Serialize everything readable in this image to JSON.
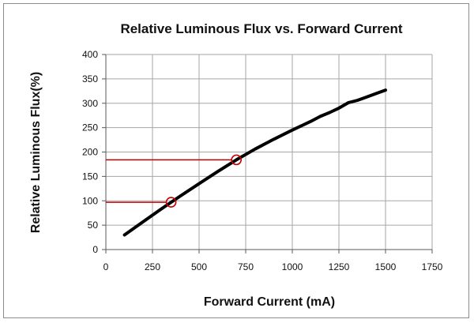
{
  "chart_data": {
    "type": "line",
    "title": "Relative Luminous Flux vs. Forward Current",
    "xlabel": "Forward Current (mA)",
    "ylabel": "Relative Luminous Flux(%)",
    "xlim": [
      0,
      1750
    ],
    "ylim": [
      0,
      400
    ],
    "x_ticks": [
      0,
      250,
      500,
      750,
      1000,
      1250,
      1500,
      1750
    ],
    "y_ticks": [
      0,
      50,
      100,
      150,
      200,
      250,
      300,
      350,
      400
    ],
    "grid": true,
    "series": [
      {
        "x": [
          100,
          200,
          300,
          350,
          400,
          500,
          600,
          700,
          800,
          900,
          1000,
          1100,
          1150,
          1200,
          1250,
          1300,
          1350,
          1400,
          1450,
          1500
        ],
        "y": [
          30,
          57,
          84,
          97,
          110,
          135,
          160,
          184,
          206,
          226,
          245,
          263,
          273,
          281,
          290,
          301,
          306,
          313,
          320,
          327
        ],
        "color": "#000000"
      }
    ],
    "annotations": [
      {
        "x": 350,
        "y": 97,
        "color": "#c00000"
      },
      {
        "x": 700,
        "y": 184,
        "color": "#c00000"
      }
    ]
  }
}
